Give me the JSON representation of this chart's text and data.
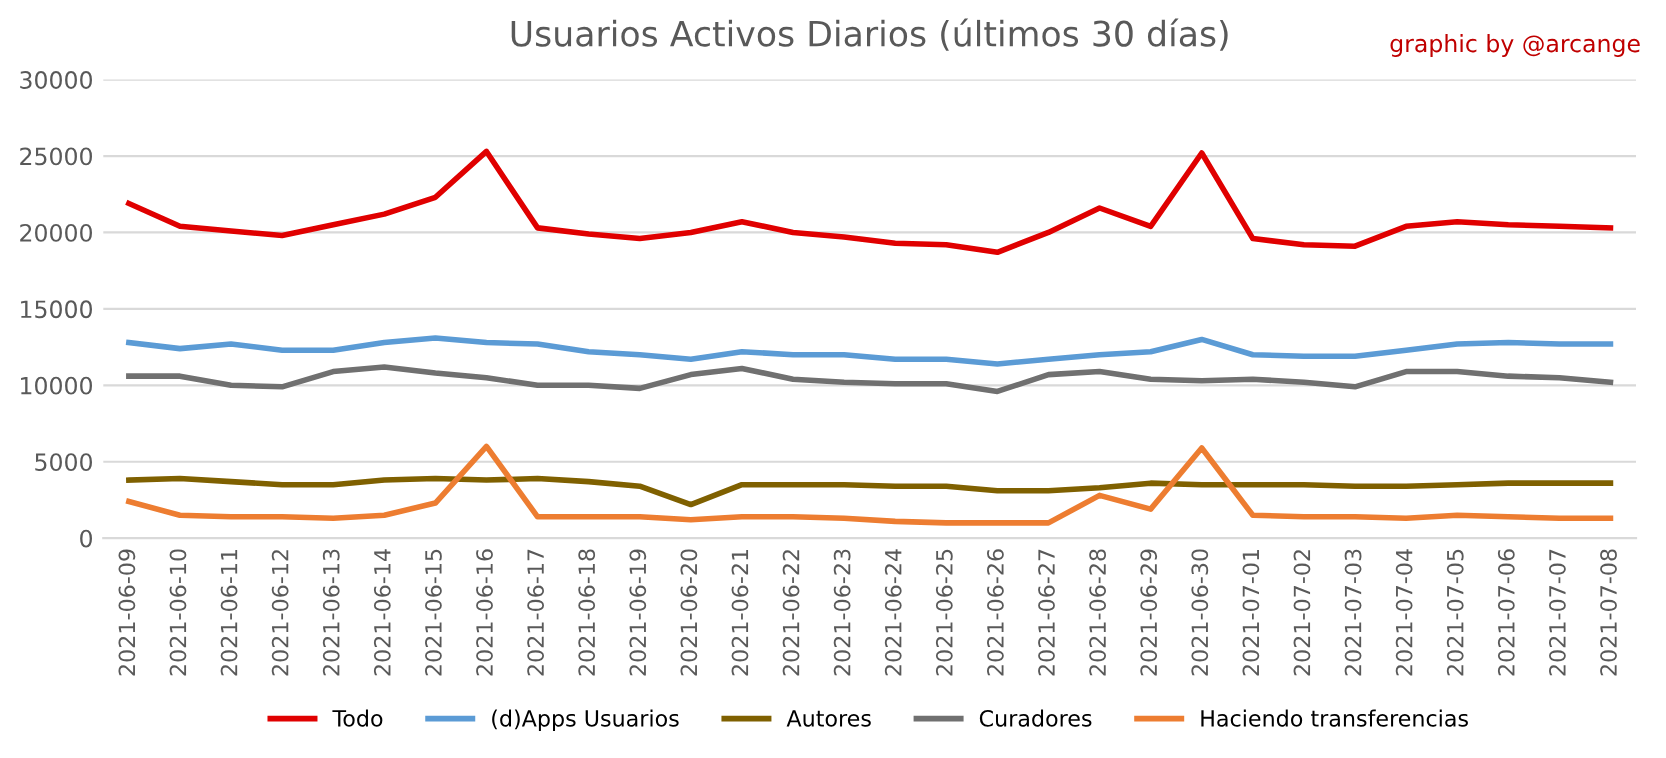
{
  "chart_data": {
    "type": "line",
    "title": "Usuarios Activos Diarios (últimos 30 días)",
    "annotations": [
      "graphic by @arcange"
    ],
    "categories": [
      "2021-06-09",
      "2021-06-10",
      "2021-06-11",
      "2021-06-12",
      "2021-06-13",
      "2021-06-14",
      "2021-06-15",
      "2021-06-16",
      "2021-06-17",
      "2021-06-18",
      "2021-06-19",
      "2021-06-20",
      "2021-06-21",
      "2021-06-22",
      "2021-06-23",
      "2021-06-24",
      "2021-06-25",
      "2021-06-26",
      "2021-06-27",
      "2021-06-28",
      "2021-06-29",
      "2021-06-30",
      "2021-07-01",
      "2021-07-02",
      "2021-07-03",
      "2021-07-04",
      "2021-07-05",
      "2021-07-06",
      "2021-07-07",
      "2021-07-08"
    ],
    "series": [
      {
        "name": "Todo",
        "color": "#e00000",
        "values": [
          21900,
          20400,
          20100,
          19800,
          20500,
          21200,
          22300,
          25300,
          20300,
          19900,
          19600,
          20000,
          20700,
          20000,
          19700,
          19300,
          19200,
          18700,
          20000,
          21600,
          20400,
          25200,
          19600,
          19200,
          19100,
          20400,
          20700,
          20500,
          20400,
          20300
        ]
      },
      {
        "name": "(d)Apps Usuarios",
        "color": "#5b9bd5",
        "values": [
          12800,
          12400,
          12700,
          12300,
          12300,
          12800,
          13100,
          12800,
          12700,
          12200,
          12000,
          11700,
          12200,
          12000,
          12000,
          11700,
          11700,
          11400,
          11700,
          12000,
          12200,
          13000,
          12000,
          11900,
          11900,
          12300,
          12700,
          12800,
          12700,
          12700
        ]
      },
      {
        "name": "Autores",
        "color": "#7f6000",
        "values": [
          3800,
          3900,
          3700,
          3500,
          3500,
          3800,
          3900,
          3800,
          3900,
          3700,
          3400,
          2200,
          3500,
          3500,
          3500,
          3400,
          3400,
          3100,
          3100,
          3300,
          3600,
          3500,
          3500,
          3500,
          3400,
          3400,
          3500,
          3600,
          3600,
          3600
        ]
      },
      {
        "name": "Curadores",
        "color": "#707070",
        "values": [
          10600,
          10600,
          10000,
          9900,
          10900,
          11200,
          10800,
          10500,
          10000,
          10000,
          9800,
          10700,
          11100,
          10400,
          10200,
          10100,
          10100,
          9600,
          10700,
          10900,
          10400,
          10300,
          10400,
          10200,
          9900,
          10900,
          10900,
          10600,
          10500,
          10200
        ]
      },
      {
        "name": "Haciendo transferencias",
        "color": "#ed7d31",
        "values": [
          2400,
          1500,
          1400,
          1400,
          1300,
          1500,
          2300,
          6000,
          1400,
          1400,
          1400,
          1200,
          1400,
          1400,
          1300,
          1100,
          1000,
          1000,
          1000,
          2800,
          1900,
          5900,
          1500,
          1400,
          1400,
          1300,
          1500,
          1400,
          1300,
          1300
        ]
      }
    ],
    "ylim": [
      0,
      30000
    ],
    "yticks": [
      0,
      5000,
      10000,
      15000,
      20000,
      25000,
      30000
    ],
    "grid": "y",
    "legend": "bottom",
    "marker": "none",
    "line_style": "solid"
  }
}
